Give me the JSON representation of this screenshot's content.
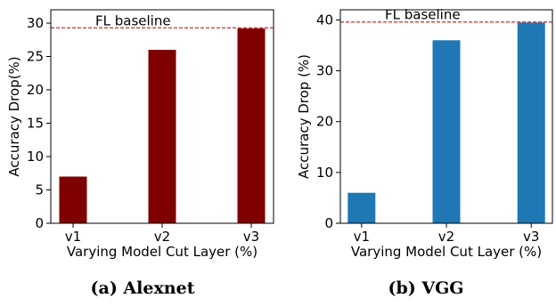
{
  "chart_data": [
    {
      "type": "bar",
      "categories": [
        "v1",
        "v2",
        "v3"
      ],
      "values": [
        7,
        26,
        29.2
      ],
      "xlabel": "Varying Model Cut Layer (%)",
      "ylabel": "Accuracy Drop(%)",
      "ylim": [
        0,
        32
      ],
      "yticks": [
        0,
        5,
        10,
        15,
        20,
        25,
        30
      ],
      "baseline": {
        "label": "FL baseline",
        "value": 29.3
      },
      "grid": false,
      "bar_color": "#7f0000",
      "baseline_color": "#d62728",
      "caption": "(a) Alexnet"
    },
    {
      "type": "bar",
      "categories": [
        "v1",
        "v2",
        "v3"
      ],
      "values": [
        6,
        36,
        39.5
      ],
      "xlabel": "Varying Model Cut Layer (%)",
      "ylabel": "Accuracy Drop (%)",
      "ylim": [
        0,
        42
      ],
      "yticks": [
        0,
        10,
        20,
        30,
        40
      ],
      "baseline": {
        "label": "FL baseline",
        "value": 39.6
      },
      "grid": false,
      "bar_color": "#1f77b4",
      "baseline_color": "#d62728",
      "caption": "(b) VGG"
    }
  ]
}
